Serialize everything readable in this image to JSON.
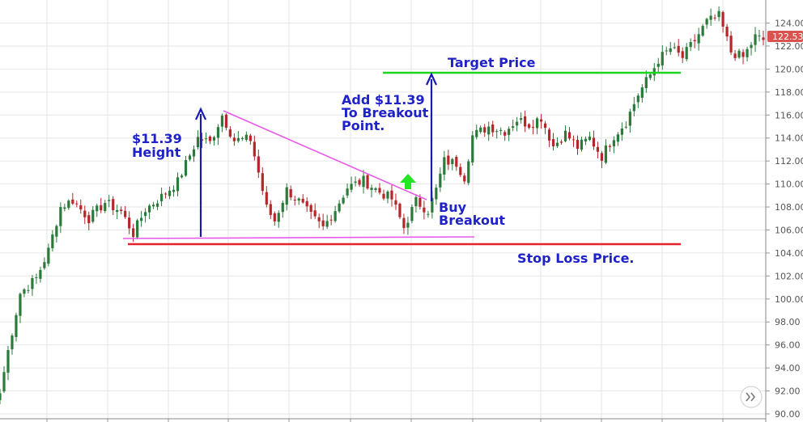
{
  "chart_data": {
    "type": "candlestick",
    "title": "",
    "xlabel": "",
    "ylabel": "",
    "ylim": [
      89.5,
      125
    ],
    "y_ticks": [
      90,
      92,
      94,
      96,
      98,
      100,
      102,
      104,
      106,
      108,
      110,
      112,
      114,
      116,
      118,
      120,
      122,
      124
    ],
    "y_tick_labels": [
      "90.00",
      "92.00",
      "94.00",
      "96.00",
      "98.00",
      "100.00",
      "102.00",
      "104.00",
      "106.00",
      "108.00",
      "110.00",
      "112.00",
      "114.00",
      "116.00",
      "118.00",
      "120.00",
      "122.00",
      "124.00"
    ],
    "grid": true,
    "axis_position": "right",
    "last_price": 122.53,
    "last_price_label": "122.53",
    "colors": {
      "up": "#2a7a3a",
      "down": "#b5262a",
      "grid": "#e6e6e6",
      "price_tag": "#d9534f"
    },
    "candle_count": 190,
    "waypoints": [
      [
        0,
        91.8
      ],
      [
        2,
        95.5
      ],
      [
        5,
        100.5
      ],
      [
        9,
        101.8
      ],
      [
        12,
        104.2
      ],
      [
        15,
        108.0
      ],
      [
        18,
        108.6
      ],
      [
        22,
        107.0
      ],
      [
        26,
        108.4
      ],
      [
        30,
        107.6
      ],
      [
        33,
        105.7
      ],
      [
        36,
        107.8
      ],
      [
        40,
        108.9
      ],
      [
        44,
        110.2
      ],
      [
        47,
        112.5
      ],
      [
        49,
        114.0
      ],
      [
        52,
        113.6
      ],
      [
        55,
        116.0
      ],
      [
        58,
        113.8
      ],
      [
        62,
        113.9
      ],
      [
        64,
        111.0
      ],
      [
        66,
        107.9
      ],
      [
        68,
        106.8
      ],
      [
        71,
        109.5
      ],
      [
        74,
        108.5
      ],
      [
        77,
        107.2
      ],
      [
        80,
        106.2
      ],
      [
        83,
        107.8
      ],
      [
        86,
        109.7
      ],
      [
        90,
        110.3
      ],
      [
        94,
        109.3
      ],
      [
        97,
        108.7
      ],
      [
        100,
        106.2
      ],
      [
        103,
        108.5
      ],
      [
        106,
        107.7
      ],
      [
        108,
        109.5
      ],
      [
        110,
        112.0
      ],
      [
        113,
        111.8
      ],
      [
        115,
        110.6
      ],
      [
        117,
        114.2
      ],
      [
        121,
        115.0
      ],
      [
        125,
        114.6
      ],
      [
        128,
        115.6
      ],
      [
        131,
        115.2
      ],
      [
        134,
        115.8
      ],
      [
        137,
        113.3
      ],
      [
        140,
        114.4
      ],
      [
        143,
        113.2
      ],
      [
        146,
        114.0
      ],
      [
        149,
        112.4
      ],
      [
        152,
        114.2
      ],
      [
        155,
        115.4
      ],
      [
        158,
        117.8
      ],
      [
        161,
        119.5
      ],
      [
        163,
        120.8
      ],
      [
        166,
        121.8
      ],
      [
        169,
        121.0
      ],
      [
        172,
        122.5
      ],
      [
        175,
        124.1
      ],
      [
        178,
        124.6
      ],
      [
        181,
        121.5
      ],
      [
        184,
        121.0
      ],
      [
        187,
        122.8
      ],
      [
        189,
        122.53
      ]
    ],
    "annotations": [
      {
        "id": "height",
        "lines": [
          "$11.39",
          "Height"
        ]
      },
      {
        "id": "add",
        "lines": [
          "Add $11.39",
          "To Breakout",
          "Point."
        ]
      },
      {
        "id": "buy",
        "lines": [
          "Buy",
          "Breakout"
        ]
      },
      {
        "id": "target",
        "lines": [
          "Target Price"
        ]
      },
      {
        "id": "stop",
        "lines": [
          "Stop Loss Price."
        ]
      }
    ],
    "overlay_lines": [
      {
        "name": "target-line",
        "color": "#1fd41f",
        "price": 119.4
      },
      {
        "name": "stop-loss-line",
        "color": "#e8202a",
        "price": 104.5
      },
      {
        "name": "triangle-upper-line",
        "color": "#e85ae8"
      },
      {
        "name": "triangle-lower-line",
        "color": "#e85ae8"
      }
    ]
  },
  "icons": {
    "scroll_button": "double-chevron-right-icon",
    "breakout_marker": "up-arrow-icon"
  }
}
